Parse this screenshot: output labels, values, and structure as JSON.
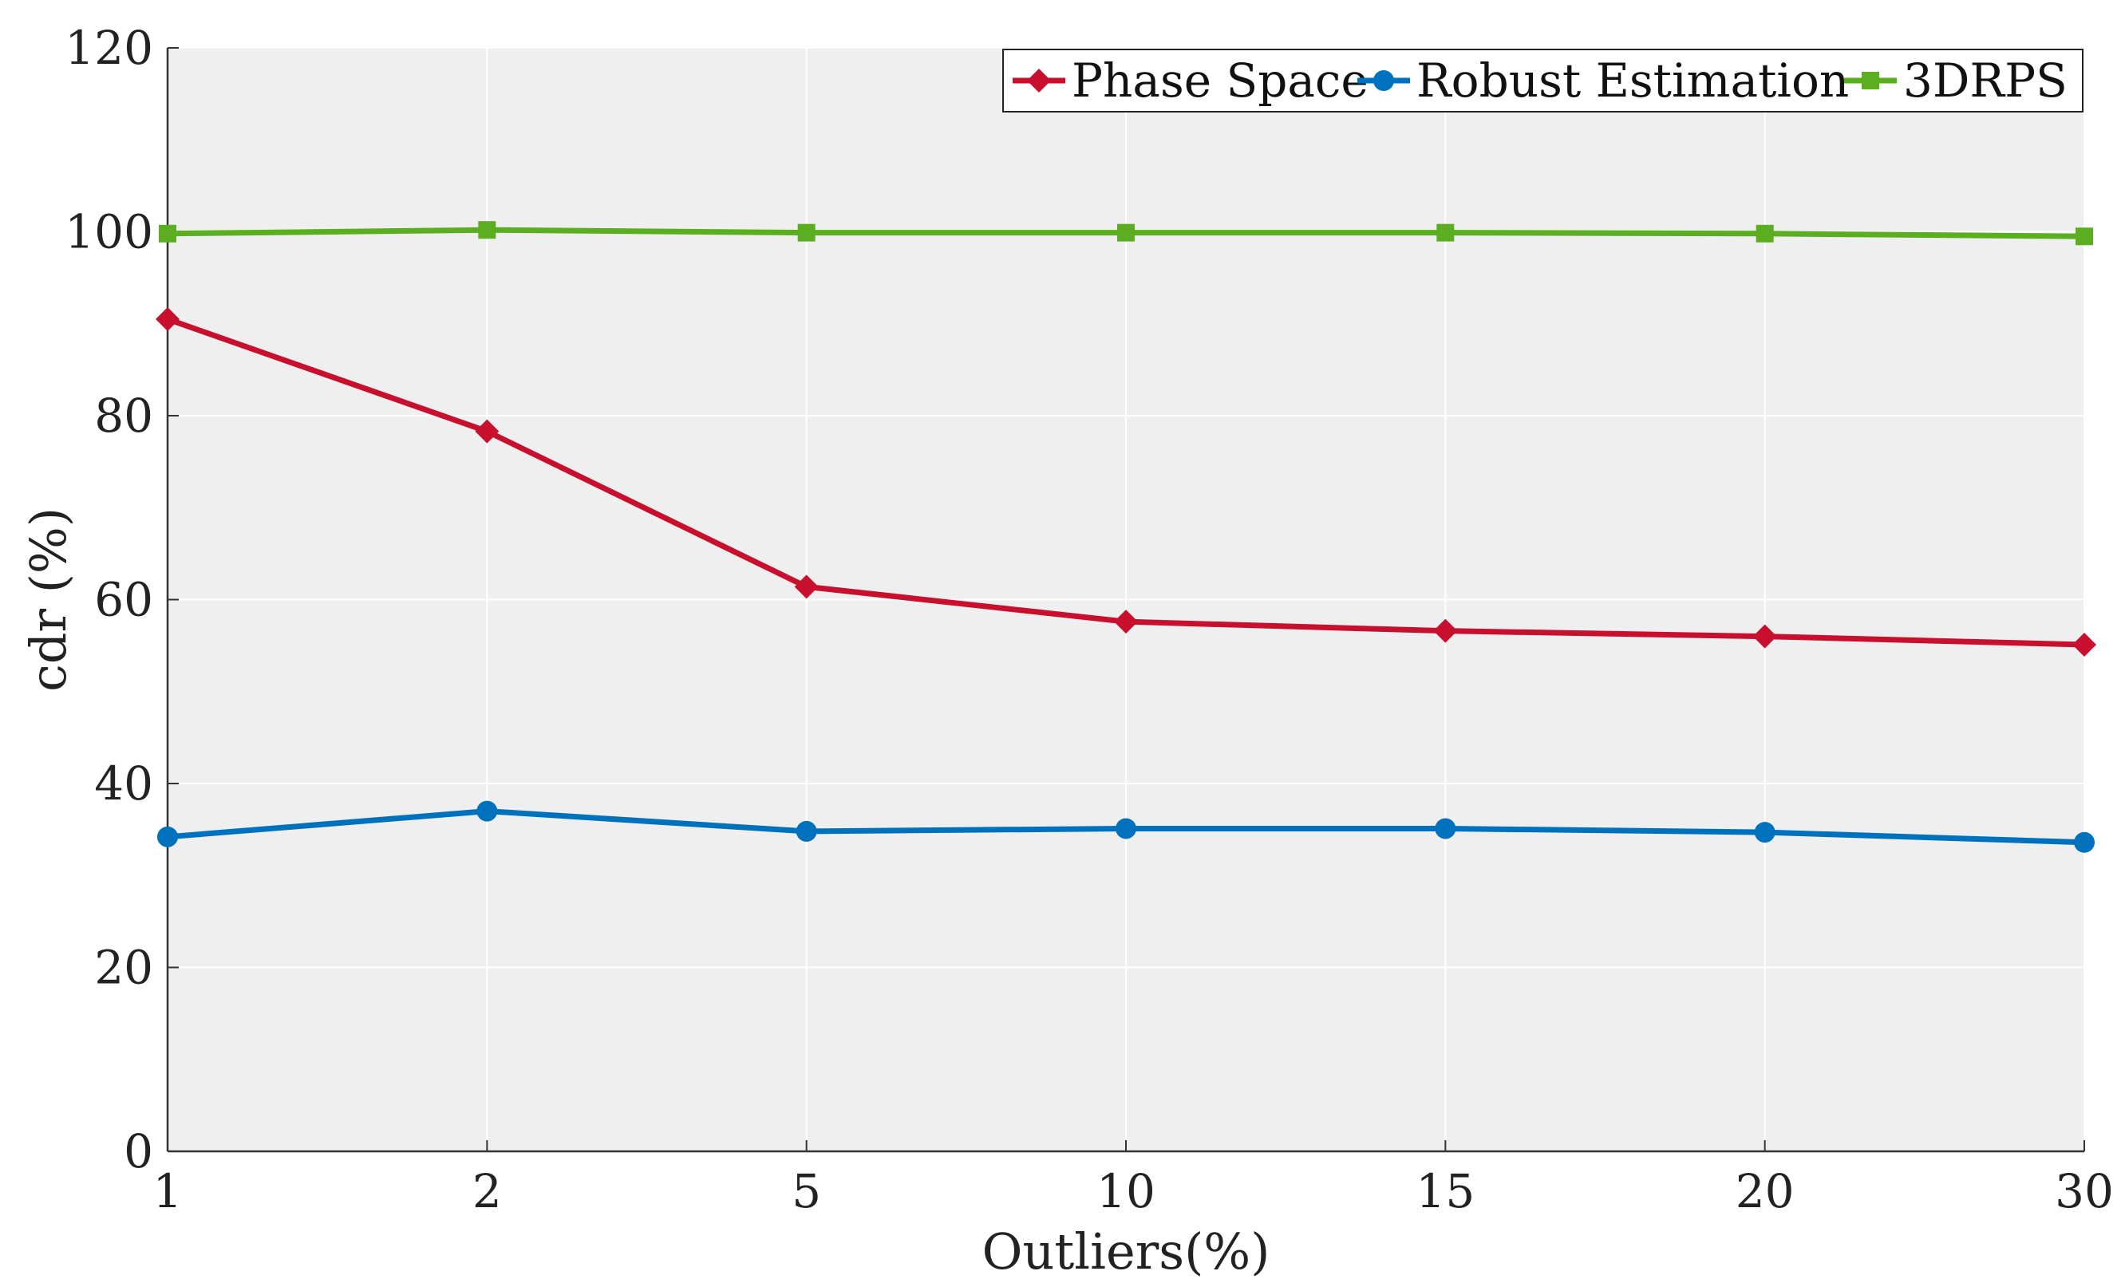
{
  "chart_data": {
    "type": "line",
    "title": "",
    "xlabel": "Outliers(%)",
    "ylabel": "cdr (%)",
    "categories": [
      "1",
      "2",
      "5",
      "10",
      "15",
      "20",
      "30"
    ],
    "ylim": [
      0,
      120
    ],
    "yticks": [
      0,
      20,
      40,
      60,
      80,
      100,
      120
    ],
    "grid": true,
    "legend_position": "top-right",
    "series": [
      {
        "name": "Phase Space",
        "color": "#c8102e",
        "marker": "diamond",
        "values": [
          90.5,
          78.3,
          61.4,
          57.6,
          56.6,
          56.0,
          55.1
        ]
      },
      {
        "name": "Robust Estimation",
        "color": "#0072bd",
        "marker": "circle",
        "values": [
          34.2,
          37.0,
          34.8,
          35.1,
          35.1,
          34.7,
          33.6
        ]
      },
      {
        "name": "3DRPS",
        "color": "#5aae1f",
        "marker": "square",
        "values": [
          99.8,
          100.2,
          99.9,
          99.9,
          99.9,
          99.8,
          99.5
        ]
      }
    ]
  }
}
